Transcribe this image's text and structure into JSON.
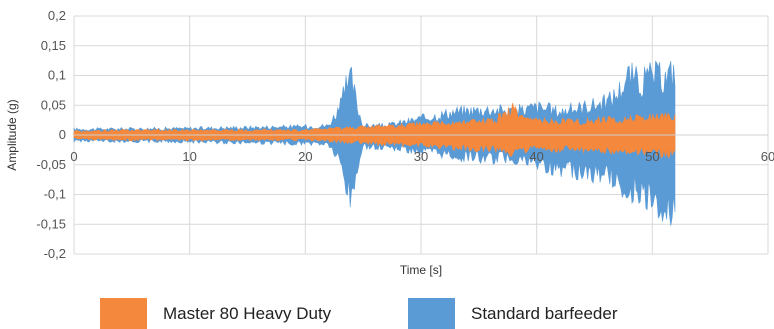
{
  "chart_data": {
    "type": "area",
    "title": "",
    "xlabel": "Time [s]",
    "ylabel": "Amplitude (g)",
    "xlim": [
      0,
      60
    ],
    "ylim": [
      -0.2,
      0.2
    ],
    "x_ticks": [
      "0",
      "10",
      "20",
      "30",
      "40",
      "50",
      "60"
    ],
    "y_ticks": [
      "0,2",
      "0,15",
      "0,1",
      "0,05",
      "0",
      "-0,05",
      "-0,1",
      "-0,15",
      "-0,2"
    ],
    "grid": true,
    "legend_position": "bottom",
    "series": [
      {
        "name": "Standard barfeeder",
        "color": "#5b9bd5",
        "x": [
          0,
          5,
          10,
          15,
          20,
          22,
          23,
          23.5,
          24,
          24.5,
          25,
          27,
          30,
          33,
          36,
          38,
          40,
          42,
          44,
          46,
          47,
          48,
          49,
          50,
          51,
          52
        ],
        "upper": [
          0.012,
          0.013,
          0.014,
          0.016,
          0.018,
          0.02,
          0.06,
          0.1,
          0.12,
          0.06,
          0.02,
          0.02,
          0.035,
          0.05,
          0.055,
          0.05,
          0.06,
          0.05,
          0.06,
          0.07,
          0.09,
          0.13,
          0.11,
          0.13,
          0.12,
          0.14
        ],
        "lower": [
          -0.012,
          -0.013,
          -0.014,
          -0.016,
          -0.018,
          -0.02,
          -0.06,
          -0.11,
          -0.145,
          -0.07,
          -0.025,
          -0.025,
          -0.035,
          -0.045,
          -0.05,
          -0.05,
          -0.065,
          -0.07,
          -0.08,
          -0.085,
          -0.1,
          -0.115,
          -0.12,
          -0.13,
          -0.15,
          -0.165
        ]
      },
      {
        "name": "Master 80 Heavy Duty",
        "color": "#f4883c",
        "x": [
          0,
          5,
          10,
          15,
          20,
          24,
          28,
          32,
          36,
          37.5,
          38,
          38.5,
          40,
          44,
          48,
          52
        ],
        "upper": [
          0.008,
          0.01,
          0.01,
          0.01,
          0.01,
          0.015,
          0.02,
          0.025,
          0.03,
          0.045,
          0.06,
          0.035,
          0.03,
          0.03,
          0.035,
          0.04
        ],
        "lower": [
          -0.008,
          -0.01,
          -0.01,
          -0.01,
          -0.01,
          -0.015,
          -0.02,
          -0.025,
          -0.03,
          -0.035,
          -0.04,
          -0.03,
          -0.03,
          -0.03,
          -0.035,
          -0.04
        ]
      }
    ]
  }
}
